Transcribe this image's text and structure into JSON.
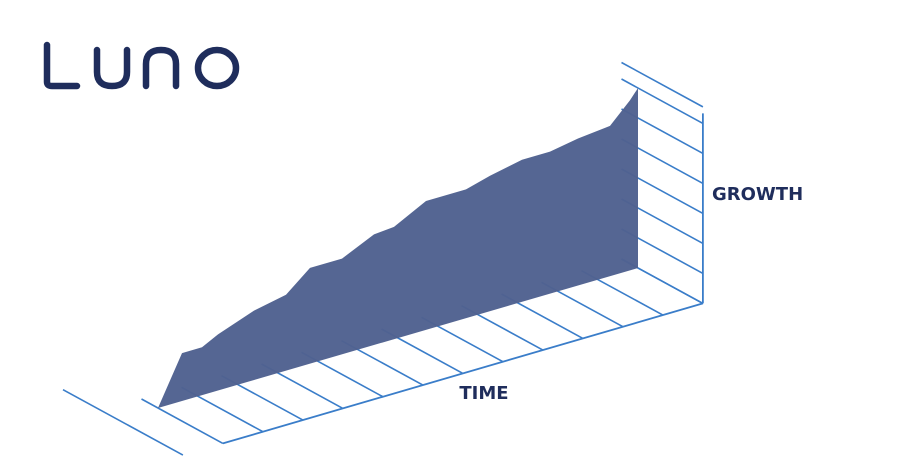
{
  "logo": {
    "text": "LUNO",
    "color": "#1f2d5c"
  },
  "colors": {
    "grid": "#3a7dc9",
    "area": "#4f6190",
    "text": "#1f2d5c"
  },
  "chart_data": {
    "type": "area",
    "xlabel": "TIME",
    "ylabel": "GROWTH",
    "grid": true,
    "x": [
      0,
      0.6,
      1.1,
      1.5,
      2.4,
      3.2,
      3.8,
      4.6,
      5.4,
      5.9,
      6.7,
      7.7,
      8.3,
      9.1,
      9.8,
      10.5,
      11.3,
      11.8,
      12
    ],
    "values": [
      0,
      1.45,
      1.45,
      1.7,
      2.1,
      2.3,
      2.9,
      2.9,
      3.35,
      3.4,
      3.9,
      3.9,
      4.1,
      4.3,
      4.3,
      4.45,
      4.55,
      5.15,
      5.45
    ],
    "xlim": [
      0,
      12
    ],
    "ylim": [
      0,
      5.45
    ]
  }
}
